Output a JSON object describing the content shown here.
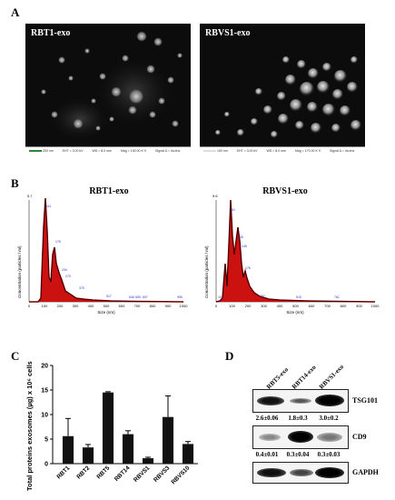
{
  "panels": {
    "a": "A",
    "b": "B",
    "c": "C",
    "d": "D"
  },
  "sem": [
    {
      "title": "RBT1-exo",
      "scale": "200 nm",
      "eht": "EHT = 3.00 kV",
      "wd": "WD = 8.0 mm",
      "mag": "Mag = 100.00 K X",
      "signal": "Signal A = InLens"
    },
    {
      "title": "RBVS1-exo",
      "scale": "100 nm",
      "eht": "EHT = 3.00 kV",
      "wd": "WD = 8.0 mm",
      "mag": "Mag = 170.00 K X",
      "signal": "Signal A = InLens"
    }
  ],
  "nta": [
    {
      "title": "RBT1-exo",
      "ylabel": "Concentration (particles / ml)",
      "xlabel": "Size (nm)",
      "y_max_label": "5.7",
      "peak_labels": [
        "111",
        "175",
        "234",
        "270",
        "370",
        "517",
        "646",
        "650",
        "697",
        "995"
      ],
      "x_ticks": [
        "0",
        "100",
        "200",
        "300",
        "400",
        "500",
        "600",
        "700",
        "800",
        "900",
        "1000"
      ]
    },
    {
      "title": "RBVS1-exo",
      "ylabel": "Concentration (particles / ml)",
      "xlabel": "Size (nm)",
      "y_max_label": "9.6",
      "peak_labels": [
        "16",
        "81",
        "125",
        "145",
        "176",
        "287",
        "515",
        "761"
      ],
      "x_ticks": [
        "0",
        "100",
        "200",
        "300",
        "400",
        "500",
        "600",
        "700",
        "800",
        "900",
        "1000"
      ]
    }
  ],
  "chart_data": {
    "type": "bar",
    "categories": [
      "RBT1",
      "RBT2",
      "RBT5",
      "RBT14",
      "RBVS1",
      "RBVS3",
      "RBVS10"
    ],
    "values": [
      5.6,
      3.3,
      14.5,
      6.0,
      1.1,
      9.5,
      4.0
    ],
    "errors": [
      3.6,
      0.6,
      0.15,
      0.7,
      0.2,
      4.3,
      0.5
    ],
    "ylabel": "Total proteins exosomes (µg) x 10⁶ cells",
    "ylim": [
      0,
      20
    ],
    "yticks": [
      "0",
      "5",
      "10",
      "15",
      "20"
    ],
    "bar_color": "#111111"
  },
  "western": {
    "lanes": [
      "RBT5-exo",
      "RBT14-exo",
      "RBVS1-exo"
    ],
    "rows": [
      {
        "label": "TSG101",
        "values": [
          "2.6±0.06",
          "1.8±0.3",
          "3.0±0.2"
        ]
      },
      {
        "label": "CD9",
        "values": [
          "0.4±0.01",
          "0.3±0.04",
          "0.3±0.03"
        ]
      },
      {
        "label": "GAPDH",
        "values": []
      }
    ]
  }
}
